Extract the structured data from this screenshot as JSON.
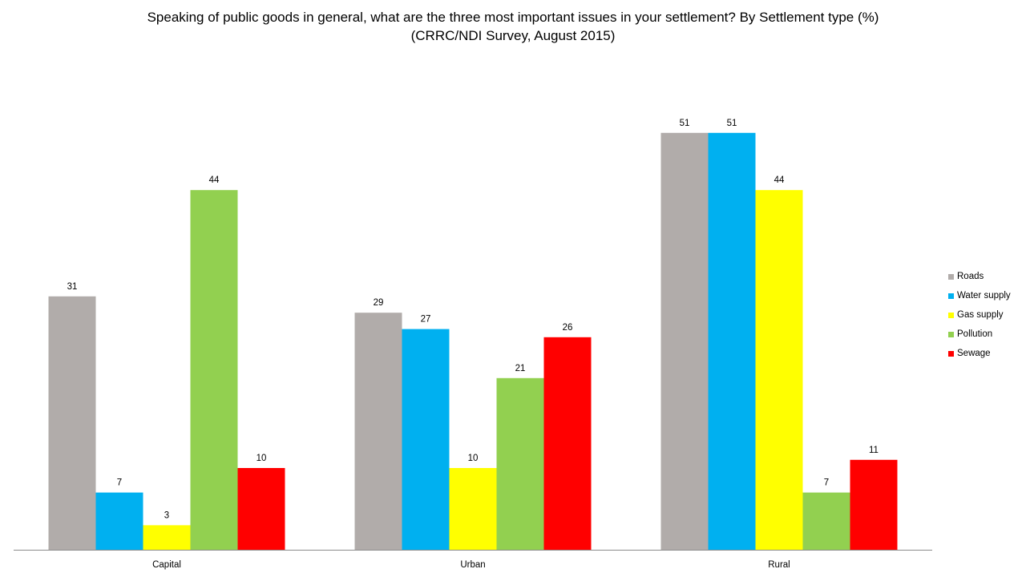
{
  "title": {
    "line1": "Speaking of public goods in general, what are the three most important issues in your settlement? By Settlement type (%)",
    "line2": "(CRRC/NDI Survey, August 2015)"
  },
  "chart_data": {
    "type": "bar",
    "categories": [
      "Capital",
      "Urban",
      "Rural"
    ],
    "series": [
      {
        "name": "Roads",
        "color": "#b1acaa",
        "values": [
          31,
          29,
          51
        ]
      },
      {
        "name": "Water supply",
        "color": "#00b0f0",
        "values": [
          7,
          27,
          51
        ]
      },
      {
        "name": "Gas supply",
        "color": "#ffff00",
        "values": [
          3,
          10,
          44
        ]
      },
      {
        "name": "Pollution",
        "color": "#92d050",
        "values": [
          44,
          21,
          7
        ]
      },
      {
        "name": "Sewage",
        "color": "#ff0000",
        "values": [
          10,
          26,
          11
        ]
      }
    ],
    "xlabel": "",
    "ylabel": "",
    "ylim": [
      0,
      60
    ],
    "grid": false,
    "legend_position": "right"
  }
}
